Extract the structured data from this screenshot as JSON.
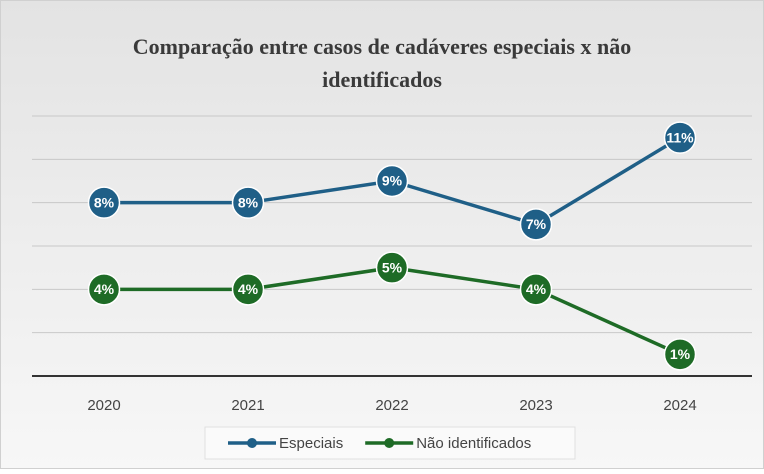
{
  "chart_data": {
    "type": "line",
    "title": "Comparação  entre casos de cadáveres especiais x não identificados",
    "categories": [
      "2020",
      "2021",
      "2022",
      "2023",
      "2024"
    ],
    "series": [
      {
        "name": "Especiais",
        "color": "#1f5f87",
        "values": [
          8,
          8,
          9,
          7,
          11
        ],
        "value_labels": [
          "8%",
          "8%",
          "9%",
          "7%",
          "11%"
        ]
      },
      {
        "name": "Não identificados",
        "color": "#1e6b26",
        "values": [
          4,
          4,
          5,
          4,
          1
        ],
        "value_labels": [
          "4%",
          "4%",
          "5%",
          "4%",
          "1%"
        ]
      }
    ],
    "ylim": [
      0,
      12
    ],
    "yticks": [
      0,
      2,
      4,
      6,
      8,
      10,
      12
    ],
    "grid": true,
    "legend": "bottom"
  }
}
